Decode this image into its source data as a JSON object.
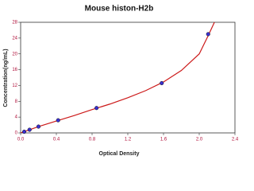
{
  "chart_data": {
    "type": "scatter",
    "title": "Mouse histon-H2b",
    "x_label": "Optical Density",
    "y_label": "Concentration(ng/mL)",
    "xlim": [
      0,
      2.4
    ],
    "ylim": [
      0,
      28
    ],
    "xticks": [
      {
        "value": 0,
        "label": "0.0"
      },
      0.4,
      0.8,
      1.2,
      1.6,
      {
        "value": 2,
        "label": "2.0"
      },
      2.4
    ],
    "yticks": [
      0,
      4,
      8,
      12,
      16,
      20,
      24,
      28
    ],
    "series": [
      {
        "color": "#3a2fd0",
        "x": [
          0.04,
          0.1,
          0.2,
          0.42,
          0.85,
          1.58,
          2.1
        ],
        "values": [
          0.3,
          0.8,
          1.6,
          3.2,
          6.3,
          12.6,
          25
        ]
      },
      {
        "type": "line",
        "color": "#cc1a1a",
        "x": [
          0,
          0.2,
          0.4,
          0.6,
          0.8,
          1.0,
          1.2,
          1.4,
          1.6,
          1.8,
          2.0,
          2.1,
          2.17
        ],
        "values": [
          0,
          1.6,
          3.0,
          4.4,
          5.9,
          7.3,
          8.9,
          10.7,
          12.9,
          15.8,
          20,
          24.6,
          28
        ]
      }
    ]
  }
}
